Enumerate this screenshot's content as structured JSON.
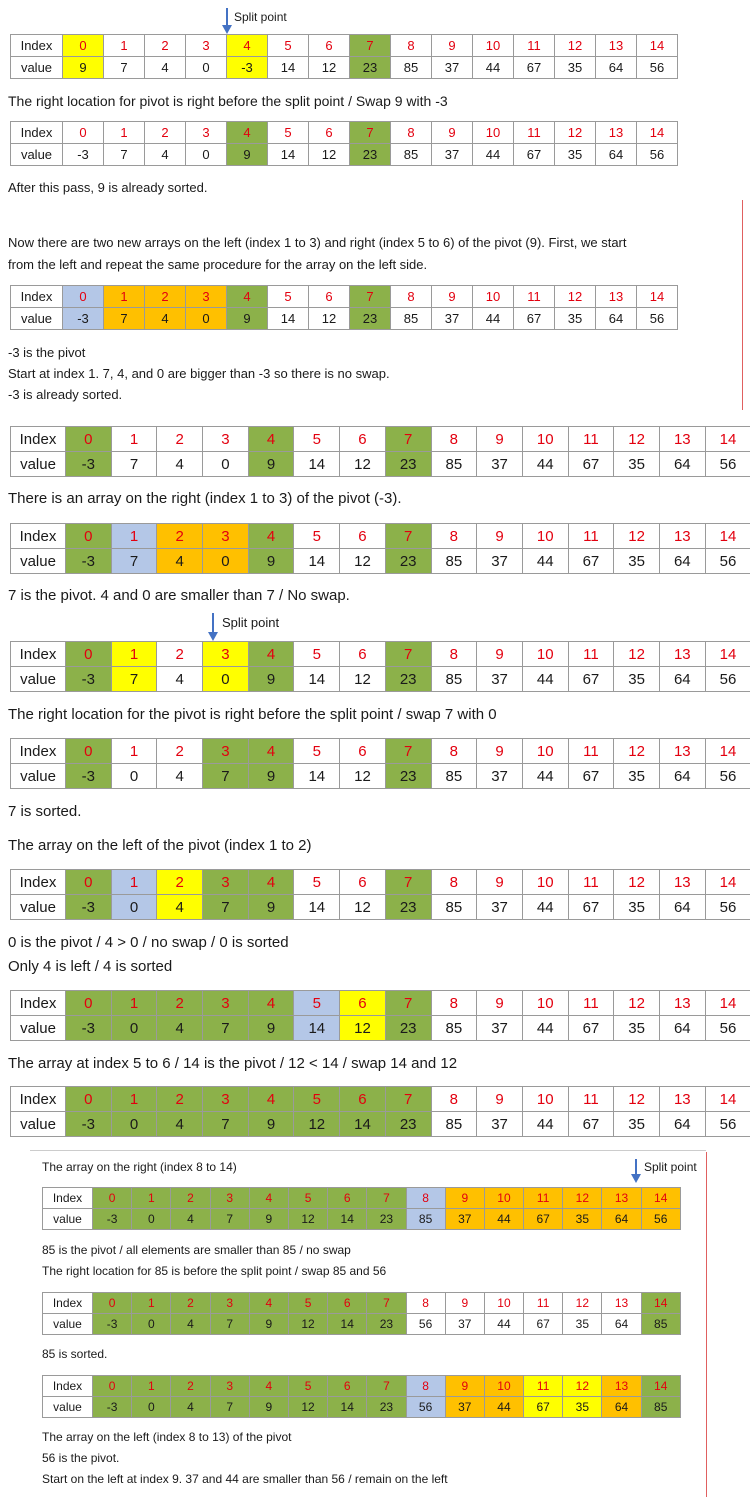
{
  "row_label_index": "Index",
  "row_label_value": "value",
  "split_point_label": "Split point",
  "indices": [
    "0",
    "1",
    "2",
    "3",
    "4",
    "5",
    "6",
    "7",
    "8",
    "9",
    "10",
    "11",
    "12",
    "13",
    "14"
  ],
  "arrays": [
    {
      "values": [
        "9",
        "7",
        "4",
        "0",
        "-3",
        "14",
        "12",
        "23",
        "85",
        "37",
        "44",
        "67",
        "35",
        "64",
        "56"
      ],
      "colors": [
        "yellow",
        "",
        "",
        "",
        "yellow",
        "",
        "",
        "green",
        "",
        "",
        "",
        "",
        "",
        "",
        ""
      ]
    },
    {
      "values": [
        "-3",
        "7",
        "4",
        "0",
        "9",
        "14",
        "12",
        "23",
        "85",
        "37",
        "44",
        "67",
        "35",
        "64",
        "56"
      ],
      "colors": [
        "",
        "",
        "",
        "",
        "green",
        "",
        "",
        "green",
        "",
        "",
        "",
        "",
        "",
        "",
        ""
      ]
    },
    {
      "values": [
        "-3",
        "7",
        "4",
        "0",
        "9",
        "14",
        "12",
        "23",
        "85",
        "37",
        "44",
        "67",
        "35",
        "64",
        "56"
      ],
      "colors": [
        "blue",
        "orange",
        "orange",
        "orange",
        "green",
        "",
        "",
        "green",
        "",
        "",
        "",
        "",
        "",
        "",
        ""
      ]
    },
    {
      "values": [
        "-3",
        "7",
        "4",
        "0",
        "9",
        "14",
        "12",
        "23",
        "85",
        "37",
        "44",
        "67",
        "35",
        "64",
        "56"
      ],
      "colors": [
        "green",
        "",
        "",
        "",
        "green",
        "",
        "",
        "green",
        "",
        "",
        "",
        "",
        "",
        "",
        ""
      ]
    },
    {
      "values": [
        "-3",
        "7",
        "4",
        "0",
        "9",
        "14",
        "12",
        "23",
        "85",
        "37",
        "44",
        "67",
        "35",
        "64",
        "56"
      ],
      "colors": [
        "green",
        "blue",
        "orange",
        "orange",
        "green",
        "",
        "",
        "green",
        "",
        "",
        "",
        "",
        "",
        "",
        ""
      ]
    },
    {
      "values": [
        "-3",
        "7",
        "4",
        "0",
        "9",
        "14",
        "12",
        "23",
        "85",
        "37",
        "44",
        "67",
        "35",
        "64",
        "56"
      ],
      "colors": [
        "green",
        "yellow",
        "",
        "yellow",
        "green",
        "",
        "",
        "green",
        "",
        "",
        "",
        "",
        "",
        "",
        ""
      ]
    },
    {
      "values": [
        "-3",
        "0",
        "4",
        "7",
        "9",
        "14",
        "12",
        "23",
        "85",
        "37",
        "44",
        "67",
        "35",
        "64",
        "56"
      ],
      "colors": [
        "green",
        "",
        "",
        "green",
        "green",
        "",
        "",
        "green",
        "",
        "",
        "",
        "",
        "",
        "",
        ""
      ]
    },
    {
      "values": [
        "-3",
        "0",
        "4",
        "7",
        "9",
        "14",
        "12",
        "23",
        "85",
        "37",
        "44",
        "67",
        "35",
        "64",
        "56"
      ],
      "colors": [
        "green",
        "blue",
        "yellow",
        "green",
        "green",
        "",
        "",
        "green",
        "",
        "",
        "",
        "",
        "",
        "",
        ""
      ]
    },
    {
      "values": [
        "-3",
        "0",
        "4",
        "7",
        "9",
        "14",
        "12",
        "23",
        "85",
        "37",
        "44",
        "67",
        "35",
        "64",
        "56"
      ],
      "colors": [
        "green",
        "green",
        "green",
        "green",
        "green",
        "blue",
        "yellow",
        "green",
        "",
        "",
        "",
        "",
        "",
        "",
        ""
      ]
    },
    {
      "values": [
        "-3",
        "0",
        "4",
        "7",
        "9",
        "12",
        "14",
        "23",
        "85",
        "37",
        "44",
        "67",
        "35",
        "64",
        "56"
      ],
      "colors": [
        "green",
        "green",
        "green",
        "green",
        "green",
        "green",
        "green",
        "green",
        "",
        "",
        "",
        "",
        "",
        "",
        ""
      ]
    },
    {
      "values": [
        "-3",
        "0",
        "4",
        "7",
        "9",
        "12",
        "14",
        "23",
        "85",
        "37",
        "44",
        "67",
        "35",
        "64",
        "56"
      ],
      "colors": [
        "green",
        "green",
        "green",
        "green",
        "green",
        "green",
        "green",
        "green",
        "blue",
        "orange",
        "orange",
        "orange",
        "orange",
        "orange",
        "orange"
      ]
    },
    {
      "values": [
        "-3",
        "0",
        "4",
        "7",
        "9",
        "12",
        "14",
        "23",
        "56",
        "37",
        "44",
        "67",
        "35",
        "64",
        "85"
      ],
      "colors": [
        "green",
        "green",
        "green",
        "green",
        "green",
        "green",
        "green",
        "green",
        "",
        "",
        "",
        "",
        "",
        "",
        "green"
      ]
    },
    {
      "values": [
        "-3",
        "0",
        "4",
        "7",
        "9",
        "12",
        "14",
        "23",
        "56",
        "37",
        "44",
        "67",
        "35",
        "64",
        "85"
      ],
      "colors": [
        "green",
        "green",
        "green",
        "green",
        "green",
        "green",
        "green",
        "green",
        "blue",
        "orange",
        "orange",
        "yellow",
        "yellow",
        "orange",
        "green"
      ]
    }
  ],
  "texts": {
    "t1": "The right location for pivot is right before the split point / Swap 9 with -3",
    "t2": "After this pass, 9 is already sorted.",
    "t3a": "Now there are two new arrays on the left (index 1 to 3) and right (index 5 to 6) of the pivot (9). First, we start",
    "t3b": "from the left and repeat the same procedure for the array on the left side.",
    "t4a": "-3 is the pivot",
    "t4b": "Start at index 1. 7, 4, and 0 are bigger than -3 so there is no swap.",
    "t4c": "-3 is already sorted.",
    "t5": "There is an array on the right (index 1 to 3) of the pivot (-3).",
    "t6": "7 is the pivot. 4 and 0 are smaller than 7 / No swap.",
    "t7": "The right location for the pivot is right before the split point / swap 7 with 0",
    "t8": "7 is sorted.",
    "t9": "The array on the left of the pivot (index 1 to 2)",
    "t10a": "0 is the pivot / 4 > 0 / no swap / 0 is sorted",
    "t10b": "Only 4 is left / 4 is sorted",
    "t11": "The array at index 5 to 6 / 14 is the pivot / 12 < 14 / swap 14 and 12",
    "t12": "The array on the right (index 8 to 14)",
    "t13a": "85 is the pivot / all elements are smaller than 85 / no swap",
    "t13b": "The right location for 85 is before the split point / swap 85 and 56",
    "t14": "85 is sorted.",
    "t15a": "The array on the left (index 8 to 13) of the pivot",
    "t15b": "56 is the pivot.",
    "t15c": "Start on the left at index 9. 37 and 44 are smaller than 56 / remain on the left"
  }
}
